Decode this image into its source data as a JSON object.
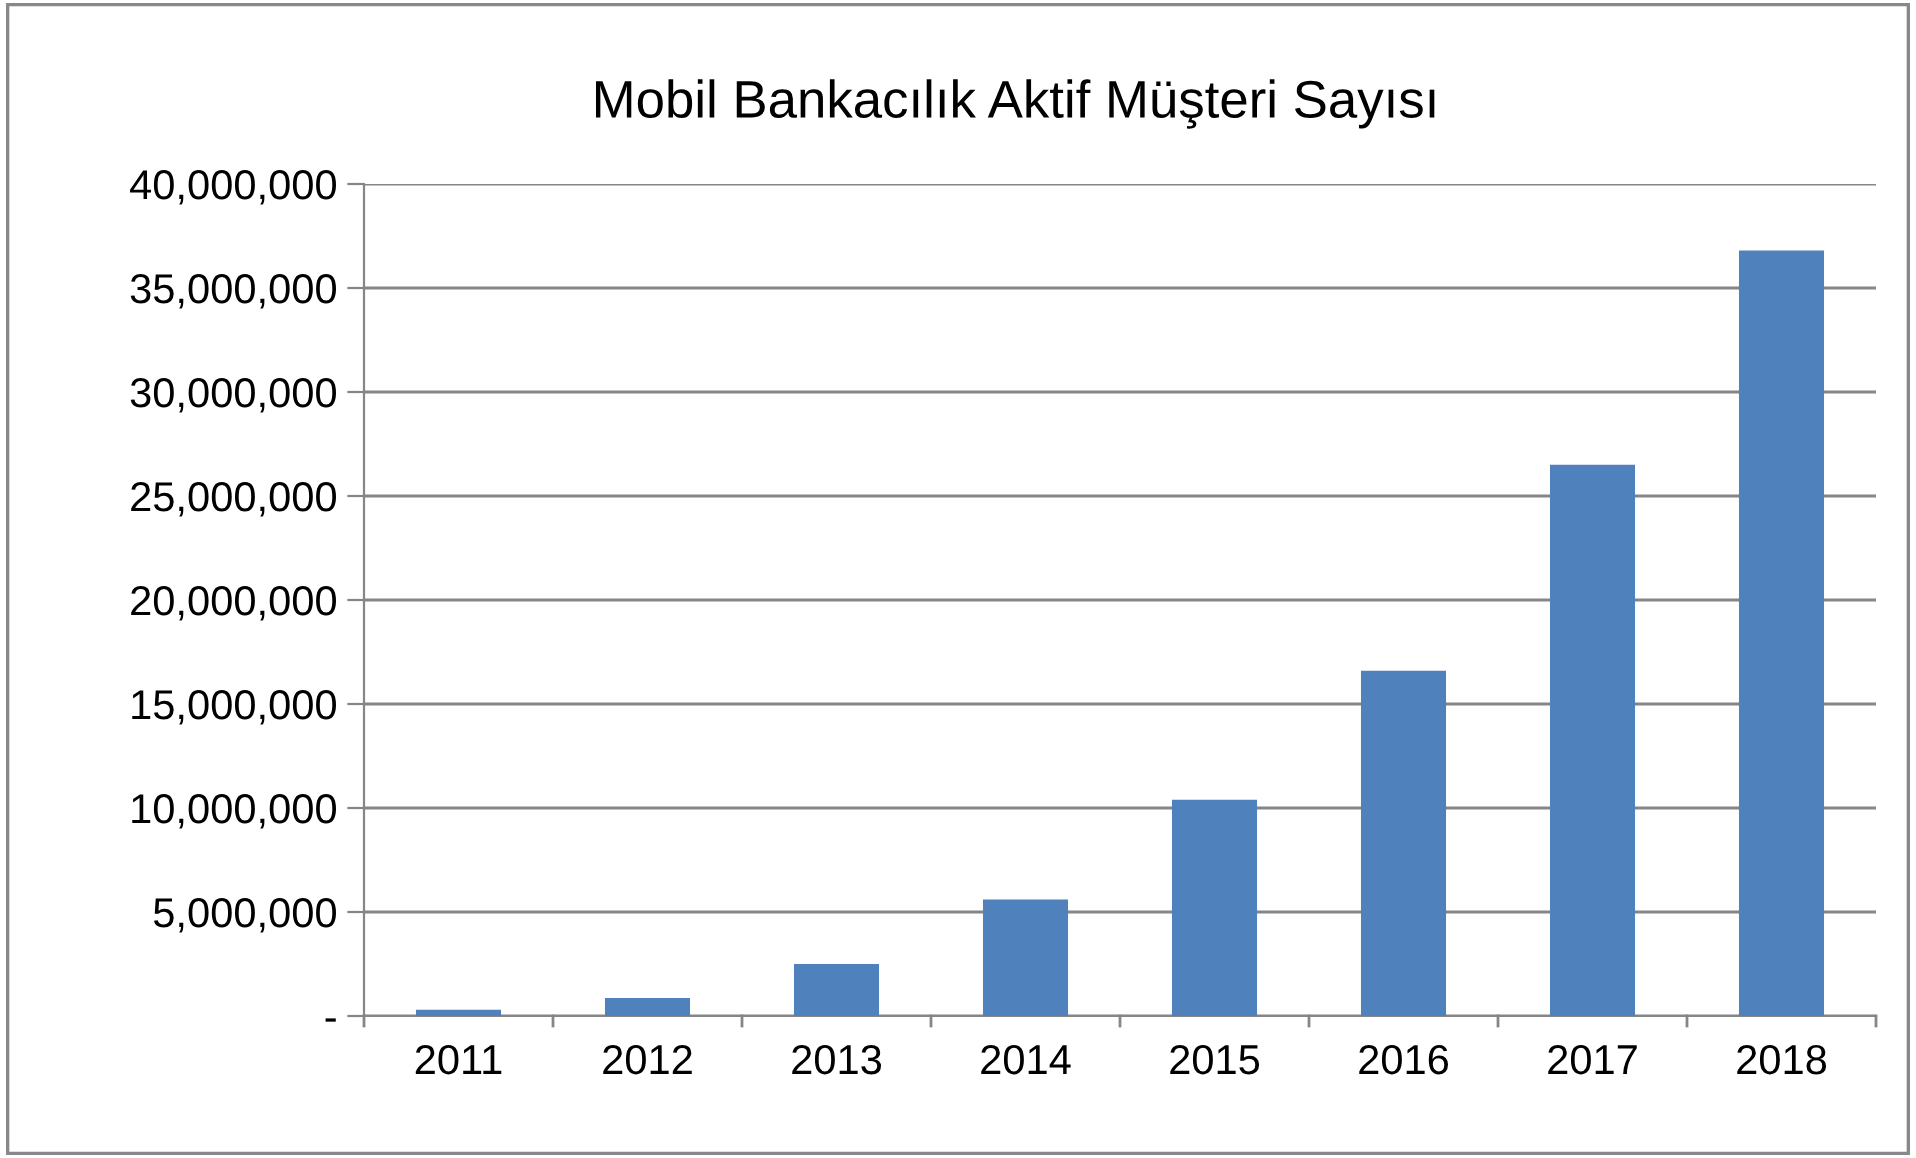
{
  "chart_data": {
    "type": "bar",
    "title": "Mobil Bankacılık Aktif Müşteri Sayısı",
    "categories": [
      "2011",
      "2012",
      "2013",
      "2014",
      "2015",
      "2016",
      "2017",
      "2018"
    ],
    "values": [
      300000,
      870000,
      2500000,
      5600000,
      10400000,
      16600000,
      26500000,
      36800000
    ],
    "color": "#4f81bd",
    "ylim": [
      0,
      40000000
    ],
    "yticks": [
      {
        "value": 0,
        "label": "-"
      },
      {
        "value": 5000000,
        "label": "5,000,000"
      },
      {
        "value": 10000000,
        "label": "10,000,000"
      },
      {
        "value": 15000000,
        "label": "15,000,000"
      },
      {
        "value": 20000000,
        "label": "20,000,000"
      },
      {
        "value": 25000000,
        "label": "25,000,000"
      },
      {
        "value": 30000000,
        "label": "30,000,000"
      },
      {
        "value": 35000000,
        "label": "35,000,000"
      },
      {
        "value": 40000000,
        "label": "40,000,000"
      }
    ],
    "grid": "y"
  }
}
